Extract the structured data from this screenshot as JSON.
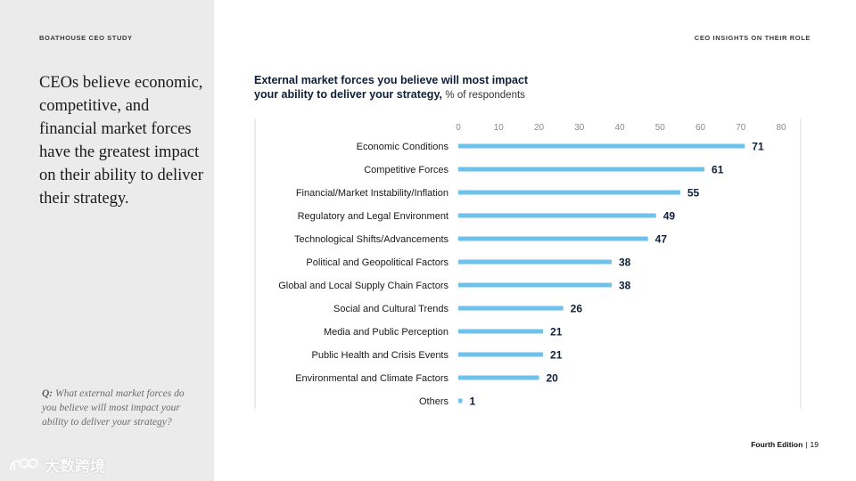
{
  "header": {
    "study_label": "BOATHOUSE CEO STUDY",
    "section_label": "CEO INSIGHTS ON THEIR ROLE"
  },
  "sidebar": {
    "headline": "CEOs believe economic, competitive, and financial market forces have the greatest impact on their ability to deliver their strategy.",
    "question_prefix": "Q:",
    "question_text": "What external market forces do you believe will most impact your ability to deliver your strategy?"
  },
  "watermark": {
    "text": "大数跨境"
  },
  "chart_data": {
    "type": "bar",
    "orientation": "horizontal",
    "title_line1": "External market forces you believe will most impact",
    "title_line2": "your ability to deliver your strategy,",
    "subtitle": "% of respondents",
    "categories": [
      "Economic Conditions",
      "Competitive Forces",
      "Financial/Market Instability/Inflation",
      "Regulatory and Legal Environment",
      "Technological Shifts/Advancements",
      "Political and Geopolitical Factors",
      "Global and Local Supply Chain Factors",
      "Social and Cultural Trends",
      "Media and Public Perception",
      "Public Health and Crisis Events",
      "Environmental and Climate Factors",
      "Others"
    ],
    "values": [
      71,
      61,
      55,
      49,
      47,
      38,
      38,
      26,
      21,
      21,
      20,
      1
    ],
    "xticks": [
      "0",
      "10",
      "20",
      "30",
      "40",
      "50",
      "60",
      "70",
      "80"
    ],
    "xlim": [
      0,
      80
    ],
    "bar_color": "#6ec1ea",
    "label_color": "#0f1f3a",
    "grid": false,
    "xlabel": "",
    "ylabel": ""
  },
  "footer": {
    "edition": "Fourth Edition",
    "separator": "|",
    "page": "19"
  }
}
